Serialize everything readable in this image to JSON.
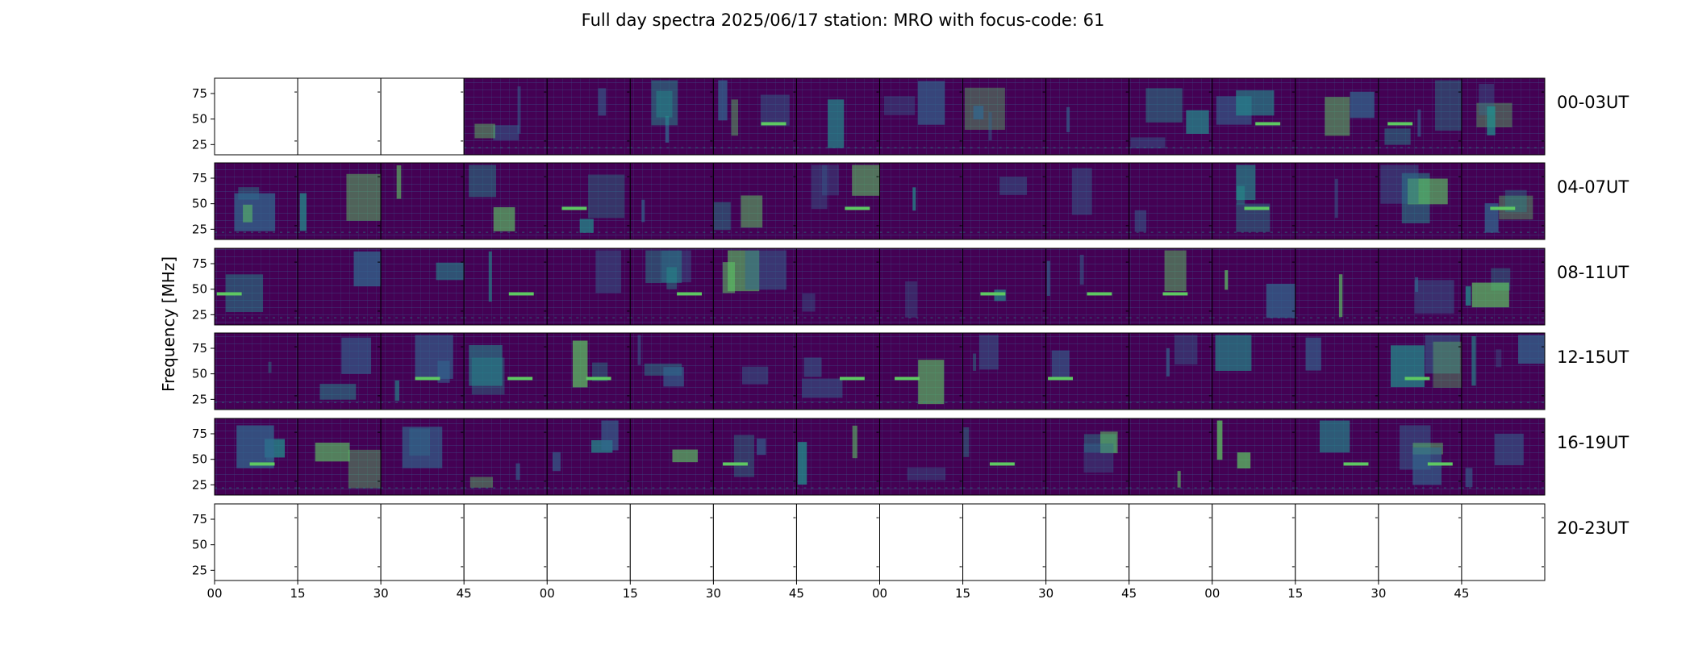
{
  "title": "Full day spectra 2025/06/17 station: MRO with focus-code: 61",
  "chart_data": {
    "type": "heatmap",
    "title": "Full day spectra 2025/06/17 station: MRO with focus-code: 61",
    "ylabel": "Frequency [MHz]",
    "xlabel": "",
    "ylim": [
      15,
      90
    ],
    "yticks": [
      "25",
      "50",
      "75"
    ],
    "xticks": [
      "00",
      "15",
      "30",
      "45",
      "00",
      "15",
      "30",
      "45",
      "00",
      "15",
      "30",
      "45",
      "00",
      "15",
      "30",
      "45"
    ],
    "colormap": "viridis",
    "colors": {
      "low": "#440154",
      "mid": "#31688e",
      "teal": "#21918c",
      "high": "#5ec962",
      "max": "#fde725"
    },
    "panels_per_row": 16,
    "rows": [
      {
        "label": "00-03UT",
        "has_data": [
          false,
          false,
          false,
          true,
          true,
          true,
          true,
          true,
          true,
          true,
          true,
          true,
          true,
          true,
          true,
          true
        ]
      },
      {
        "label": "04-07UT",
        "has_data": [
          true,
          true,
          true,
          true,
          true,
          true,
          true,
          true,
          true,
          true,
          true,
          true,
          true,
          true,
          true,
          true
        ]
      },
      {
        "label": "08-11UT",
        "has_data": [
          true,
          true,
          true,
          true,
          true,
          true,
          true,
          true,
          true,
          true,
          true,
          true,
          true,
          true,
          true,
          true
        ]
      },
      {
        "label": "12-15UT",
        "has_data": [
          true,
          true,
          true,
          true,
          true,
          true,
          true,
          true,
          true,
          true,
          true,
          true,
          true,
          true,
          true,
          true
        ]
      },
      {
        "label": "16-19UT",
        "has_data": [
          true,
          true,
          true,
          true,
          true,
          true,
          true,
          true,
          true,
          true,
          true,
          true,
          true,
          true,
          true,
          true
        ]
      },
      {
        "label": "20-23UT",
        "has_data": [
          false,
          false,
          false,
          false,
          false,
          false,
          false,
          false,
          false,
          false,
          false,
          false,
          false,
          false,
          false,
          false
        ]
      }
    ]
  }
}
